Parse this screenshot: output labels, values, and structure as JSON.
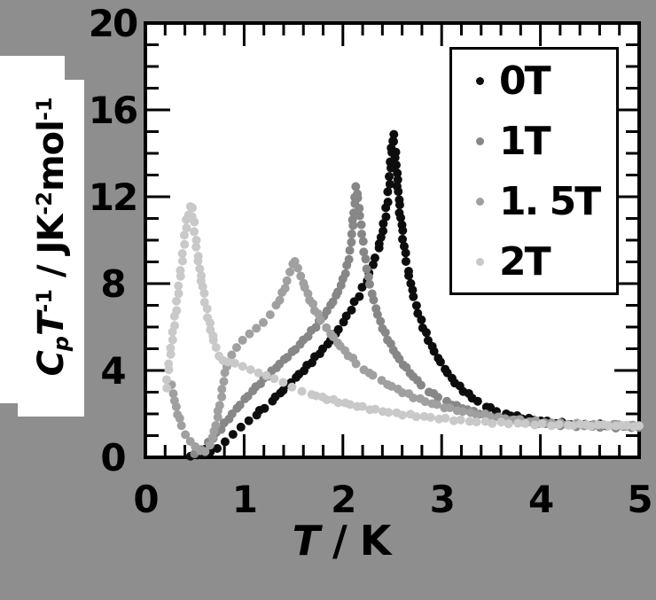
{
  "figure": {
    "background": "#8e8e8e",
    "plot_background": "#ffffff",
    "frame_color": "#000000",
    "tick_color": "#000000"
  },
  "legend": {
    "items": [
      {
        "label": "0T",
        "color": "#0d0d0d"
      },
      {
        "label": "1T",
        "color": "#878787"
      },
      {
        "label": "1. 5T",
        "color": "#a0a0a0"
      },
      {
        "label": "2T",
        "color": "#c9c9c9"
      }
    ]
  },
  "chart_data": {
    "type": "scatter",
    "title": "",
    "xlabel": "T / K",
    "ylabel": "CpT-1 / JK-2mol-1",
    "xlabel_segments": [
      {
        "t": "T",
        "s": "i"
      },
      {
        "t": " / K",
        "s": ""
      }
    ],
    "ylabel_segments": [
      {
        "t": "C",
        "s": "i"
      },
      {
        "t": "p",
        "s": "isub"
      },
      {
        "t": "T",
        "s": "i"
      },
      {
        "t": "-1",
        "s": "sup"
      },
      {
        "t": " / JK",
        "s": ""
      },
      {
        "t": "-2",
        "s": "sup"
      },
      {
        "t": "mol",
        "s": ""
      },
      {
        "t": "-1",
        "s": "sup"
      }
    ],
    "xlim": [
      0,
      5
    ],
    "ylim": [
      0,
      20
    ],
    "x_major_ticks": [
      0,
      1,
      2,
      3,
      4,
      5
    ],
    "x_tick_labels": [
      "0",
      "1",
      "2",
      "3",
      "4",
      "5"
    ],
    "x_minor_step": 0.2,
    "y_major_ticks": [
      0,
      4,
      8,
      12,
      16,
      20
    ],
    "y_tick_labels": [
      "0",
      "4",
      "8",
      "12",
      "16",
      "20"
    ],
    "y_minor_step": 1,
    "grid": false,
    "legend_position": "upper right",
    "series": [
      {
        "name": "0T",
        "color": "#0d0d0d",
        "points": [
          [
            0.45,
            0.05
          ],
          [
            0.52,
            0.07
          ],
          [
            0.58,
            0.12
          ],
          [
            0.65,
            0.25
          ],
          [
            0.72,
            0.45
          ],
          [
            0.8,
            0.75
          ],
          [
            0.88,
            1.05
          ],
          [
            0.96,
            1.35
          ],
          [
            1.04,
            1.65
          ],
          [
            1.12,
            1.95
          ],
          [
            1.2,
            2.3
          ],
          [
            1.28,
            2.62
          ],
          [
            1.36,
            2.95
          ],
          [
            1.44,
            3.3
          ],
          [
            1.52,
            3.65
          ],
          [
            1.6,
            4.0
          ],
          [
            1.68,
            4.4
          ],
          [
            1.76,
            4.8
          ],
          [
            1.84,
            5.2
          ],
          [
            1.92,
            5.65
          ],
          [
            2.0,
            6.2
          ],
          [
            2.08,
            6.8
          ],
          [
            2.16,
            7.45
          ],
          [
            2.24,
            8.15
          ],
          [
            2.3,
            8.85
          ],
          [
            2.36,
            9.6
          ],
          [
            2.4,
            10.4
          ],
          [
            2.43,
            11.1
          ],
          [
            2.45,
            11.8
          ],
          [
            2.47,
            12.6
          ],
          [
            2.48,
            13.3
          ],
          [
            2.49,
            14.0
          ],
          [
            2.5,
            14.55
          ],
          [
            2.51,
            14.9
          ],
          [
            2.53,
            14.1
          ],
          [
            2.55,
            12.8
          ],
          [
            2.57,
            11.6
          ],
          [
            2.6,
            10.4
          ],
          [
            2.63,
            9.4
          ],
          [
            2.66,
            8.6
          ],
          [
            2.7,
            7.75
          ],
          [
            2.74,
            7.0
          ],
          [
            2.79,
            6.3
          ],
          [
            2.84,
            5.7
          ],
          [
            2.9,
            5.1
          ],
          [
            2.96,
            4.6
          ],
          [
            3.03,
            4.1
          ],
          [
            3.1,
            3.65
          ],
          [
            3.18,
            3.25
          ],
          [
            3.27,
            2.9
          ],
          [
            3.36,
            2.58
          ],
          [
            3.45,
            2.35
          ],
          [
            3.55,
            2.15
          ],
          [
            3.65,
            2.0
          ],
          [
            3.76,
            1.88
          ],
          [
            3.88,
            1.76
          ],
          [
            4.0,
            1.68
          ],
          [
            4.15,
            1.6
          ],
          [
            4.3,
            1.55
          ],
          [
            4.45,
            1.52
          ],
          [
            4.6,
            1.5
          ],
          [
            4.75,
            1.48
          ],
          [
            4.9,
            1.46
          ],
          [
            5.0,
            1.45
          ]
        ]
      },
      {
        "name": "1T",
        "color": "#878787",
        "points": [
          [
            0.5,
            0.2
          ],
          [
            0.57,
            0.4
          ],
          [
            0.64,
            0.7
          ],
          [
            0.72,
            1.1
          ],
          [
            0.8,
            1.55
          ],
          [
            0.88,
            2.0
          ],
          [
            0.96,
            2.45
          ],
          [
            1.04,
            2.85
          ],
          [
            1.12,
            3.25
          ],
          [
            1.2,
            3.6
          ],
          [
            1.28,
            3.95
          ],
          [
            1.36,
            4.3
          ],
          [
            1.44,
            4.65
          ],
          [
            1.52,
            5.0
          ],
          [
            1.6,
            5.4
          ],
          [
            1.68,
            5.8
          ],
          [
            1.76,
            6.25
          ],
          [
            1.84,
            6.75
          ],
          [
            1.9,
            7.2
          ],
          [
            1.95,
            7.65
          ],
          [
            2.0,
            8.2
          ],
          [
            2.04,
            8.8
          ],
          [
            2.07,
            9.5
          ],
          [
            2.09,
            10.3
          ],
          [
            2.11,
            11.3
          ],
          [
            2.12,
            12.0
          ],
          [
            2.13,
            12.45
          ],
          [
            2.15,
            11.9
          ],
          [
            2.17,
            11.1
          ],
          [
            2.19,
            10.3
          ],
          [
            2.21,
            9.5
          ],
          [
            2.24,
            8.7
          ],
          [
            2.27,
            7.95
          ],
          [
            2.31,
            7.2
          ],
          [
            2.35,
            6.55
          ],
          [
            2.4,
            5.95
          ],
          [
            2.45,
            5.45
          ],
          [
            2.51,
            4.95
          ],
          [
            2.57,
            4.5
          ],
          [
            2.64,
            4.1
          ],
          [
            2.71,
            3.7
          ],
          [
            2.79,
            3.35
          ],
          [
            2.87,
            3.05
          ],
          [
            2.96,
            2.78
          ],
          [
            3.05,
            2.55
          ],
          [
            3.15,
            2.35
          ],
          [
            3.26,
            2.18
          ],
          [
            3.38,
            2.02
          ],
          [
            3.5,
            1.9
          ],
          [
            3.63,
            1.78
          ],
          [
            3.76,
            1.68
          ],
          [
            3.9,
            1.6
          ],
          [
            4.05,
            1.54
          ],
          [
            4.2,
            1.49
          ],
          [
            4.36,
            1.45
          ],
          [
            4.52,
            1.42
          ],
          [
            4.68,
            1.4
          ],
          [
            4.84,
            1.38
          ],
          [
            5.0,
            1.37
          ]
        ]
      },
      {
        "name": "1. 5T",
        "color": "#a0a0a0",
        "points": [
          [
            0.27,
            3.3
          ],
          [
            0.3,
            2.6
          ],
          [
            0.33,
            2.0
          ],
          [
            0.37,
            1.5
          ],
          [
            0.41,
            1.05
          ],
          [
            0.46,
            0.7
          ],
          [
            0.51,
            0.45
          ],
          [
            0.56,
            0.3
          ],
          [
            0.61,
            0.3
          ],
          [
            0.66,
            0.6
          ],
          [
            0.7,
            1.2
          ],
          [
            0.74,
            2.1
          ],
          [
            0.78,
            3.1
          ],
          [
            0.81,
            3.9
          ],
          [
            0.84,
            4.4
          ],
          [
            0.88,
            4.75
          ],
          [
            0.93,
            5.05
          ],
          [
            0.99,
            5.35
          ],
          [
            1.06,
            5.65
          ],
          [
            1.13,
            5.95
          ],
          [
            1.2,
            6.25
          ],
          [
            1.27,
            6.6
          ],
          [
            1.33,
            7.0
          ],
          [
            1.39,
            7.55
          ],
          [
            1.44,
            8.1
          ],
          [
            1.47,
            8.55
          ],
          [
            1.5,
            8.95
          ],
          [
            1.52,
            9.05
          ],
          [
            1.55,
            8.7
          ],
          [
            1.58,
            8.3
          ],
          [
            1.62,
            7.8
          ],
          [
            1.67,
            7.25
          ],
          [
            1.72,
            6.8
          ],
          [
            1.78,
            6.35
          ],
          [
            1.84,
            5.95
          ],
          [
            1.91,
            5.5
          ],
          [
            1.98,
            5.1
          ],
          [
            2.06,
            4.7
          ],
          [
            2.14,
            4.35
          ],
          [
            2.22,
            4.05
          ],
          [
            2.31,
            3.75
          ],
          [
            2.4,
            3.5
          ],
          [
            2.5,
            3.25
          ],
          [
            2.61,
            3.0
          ],
          [
            2.72,
            2.78
          ],
          [
            2.84,
            2.58
          ],
          [
            2.96,
            2.4
          ],
          [
            3.09,
            2.24
          ],
          [
            3.22,
            2.1
          ],
          [
            3.36,
            1.98
          ],
          [
            3.5,
            1.88
          ],
          [
            3.65,
            1.79
          ],
          [
            3.8,
            1.71
          ],
          [
            3.96,
            1.64
          ],
          [
            4.12,
            1.58
          ],
          [
            4.28,
            1.54
          ],
          [
            4.45,
            1.51
          ],
          [
            4.62,
            1.49
          ],
          [
            4.8,
            1.47
          ],
          [
            5.0,
            1.46
          ]
        ]
      },
      {
        "name": "2T",
        "color": "#c9c9c9",
        "points": [
          [
            0.21,
            3.2
          ],
          [
            0.23,
            4.0
          ],
          [
            0.25,
            4.7
          ],
          [
            0.27,
            5.4
          ],
          [
            0.29,
            6.1
          ],
          [
            0.31,
            6.8
          ],
          [
            0.33,
            7.55
          ],
          [
            0.35,
            8.3
          ],
          [
            0.37,
            9.0
          ],
          [
            0.39,
            9.8
          ],
          [
            0.41,
            10.6
          ],
          [
            0.43,
            11.2
          ],
          [
            0.45,
            11.55
          ],
          [
            0.47,
            11.45
          ],
          [
            0.49,
            10.8
          ],
          [
            0.51,
            10.0
          ],
          [
            0.53,
            9.3
          ],
          [
            0.56,
            8.4
          ],
          [
            0.59,
            7.55
          ],
          [
            0.62,
            6.8
          ],
          [
            0.65,
            6.15
          ],
          [
            0.68,
            5.6
          ],
          [
            0.71,
            5.1
          ],
          [
            0.74,
            4.7
          ],
          [
            0.78,
            4.45
          ],
          [
            0.83,
            4.35
          ],
          [
            0.9,
            4.3
          ],
          [
            0.98,
            4.2
          ],
          [
            1.06,
            4.08
          ],
          [
            1.14,
            3.92
          ],
          [
            1.22,
            3.75
          ],
          [
            1.3,
            3.58
          ],
          [
            1.39,
            3.42
          ],
          [
            1.48,
            3.25
          ],
          [
            1.58,
            3.08
          ],
          [
            1.68,
            2.92
          ],
          [
            1.79,
            2.76
          ],
          [
            1.9,
            2.62
          ],
          [
            2.02,
            2.48
          ],
          [
            2.14,
            2.36
          ],
          [
            2.27,
            2.24
          ],
          [
            2.4,
            2.13
          ],
          [
            2.54,
            2.03
          ],
          [
            2.68,
            1.94
          ],
          [
            2.82,
            1.86
          ],
          [
            2.97,
            1.79
          ],
          [
            3.12,
            1.73
          ],
          [
            3.28,
            1.67
          ],
          [
            3.44,
            1.62
          ],
          [
            3.6,
            1.58
          ],
          [
            3.77,
            1.55
          ],
          [
            3.94,
            1.52
          ],
          [
            4.11,
            1.5
          ],
          [
            4.28,
            1.49
          ],
          [
            4.46,
            1.48
          ],
          [
            4.64,
            1.47
          ],
          [
            4.82,
            1.46
          ],
          [
            5.0,
            1.45
          ]
        ]
      }
    ]
  }
}
